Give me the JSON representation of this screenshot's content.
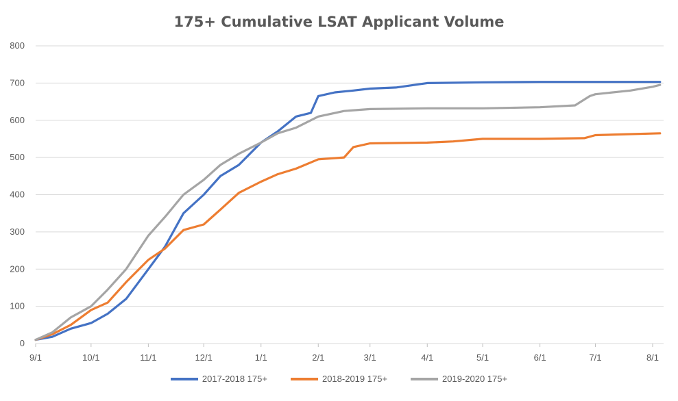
{
  "chart_data": {
    "type": "line",
    "title": "175+ Cumulative LSAT Applicant Volume",
    "xlabel": "",
    "ylabel": "",
    "ylim": [
      0,
      800
    ],
    "y_ticks": [
      0,
      100,
      200,
      300,
      400,
      500,
      600,
      700,
      800
    ],
    "x_ticks": [
      "9/1",
      "10/1",
      "11/1",
      "12/1",
      "1/1",
      "2/1",
      "3/1",
      "4/1",
      "5/1",
      "6/1",
      "7/1",
      "8/1"
    ],
    "grid": true,
    "legend_position": "bottom",
    "series": [
      {
        "name": "2017-2018 175+",
        "color": "#4472C4",
        "points": [
          [
            "9/1",
            10
          ],
          [
            "9/10",
            18
          ],
          [
            "9/20",
            40
          ],
          [
            "10/1",
            55
          ],
          [
            "10/10",
            80
          ],
          [
            "10/20",
            120
          ],
          [
            "11/1",
            200
          ],
          [
            "11/10",
            260
          ],
          [
            "11/20",
            350
          ],
          [
            "12/1",
            400
          ],
          [
            "12/10",
            450
          ],
          [
            "12/20",
            480
          ],
          [
            "1/1",
            540
          ],
          [
            "1/10",
            570
          ],
          [
            "1/20",
            610
          ],
          [
            "1/28",
            620
          ],
          [
            "2/1",
            665
          ],
          [
            "2/10",
            675
          ],
          [
            "2/20",
            680
          ],
          [
            "3/1",
            685
          ],
          [
            "3/15",
            688
          ],
          [
            "4/1",
            700
          ],
          [
            "5/1",
            702
          ],
          [
            "6/1",
            703
          ],
          [
            "7/1",
            703
          ],
          [
            "8/5",
            703
          ]
        ]
      },
      {
        "name": "2018-2019 175+",
        "color": "#ED7D31",
        "points": [
          [
            "9/1",
            10
          ],
          [
            "9/10",
            25
          ],
          [
            "9/20",
            50
          ],
          [
            "10/1",
            90
          ],
          [
            "10/10",
            110
          ],
          [
            "10/20",
            165
          ],
          [
            "11/1",
            225
          ],
          [
            "11/10",
            255
          ],
          [
            "11/20",
            305
          ],
          [
            "12/1",
            320
          ],
          [
            "12/10",
            360
          ],
          [
            "12/20",
            405
          ],
          [
            "1/1",
            435
          ],
          [
            "1/10",
            455
          ],
          [
            "1/20",
            470
          ],
          [
            "2/1",
            495
          ],
          [
            "2/15",
            500
          ],
          [
            "2/20",
            528
          ],
          [
            "3/1",
            538
          ],
          [
            "4/1",
            540
          ],
          [
            "4/15",
            543
          ],
          [
            "5/1",
            550
          ],
          [
            "6/1",
            550
          ],
          [
            "6/25",
            552
          ],
          [
            "7/1",
            560
          ],
          [
            "7/15",
            562
          ],
          [
            "8/5",
            565
          ]
        ]
      },
      {
        "name": "2019-2020 175+",
        "color": "#A5A5A5",
        "points": [
          [
            "9/1",
            10
          ],
          [
            "9/10",
            30
          ],
          [
            "9/20",
            70
          ],
          [
            "10/1",
            100
          ],
          [
            "10/10",
            145
          ],
          [
            "10/20",
            200
          ],
          [
            "11/1",
            290
          ],
          [
            "11/10",
            340
          ],
          [
            "11/20",
            400
          ],
          [
            "12/1",
            440
          ],
          [
            "12/10",
            480
          ],
          [
            "12/20",
            510
          ],
          [
            "1/1",
            540
          ],
          [
            "1/10",
            565
          ],
          [
            "1/20",
            580
          ],
          [
            "2/1",
            610
          ],
          [
            "2/15",
            625
          ],
          [
            "3/1",
            630
          ],
          [
            "4/1",
            632
          ],
          [
            "5/1",
            632
          ],
          [
            "6/1",
            635
          ],
          [
            "6/20",
            640
          ],
          [
            "6/28",
            665
          ],
          [
            "7/1",
            670
          ],
          [
            "7/20",
            680
          ],
          [
            "8/1",
            690
          ],
          [
            "8/5",
            695
          ]
        ]
      }
    ]
  }
}
